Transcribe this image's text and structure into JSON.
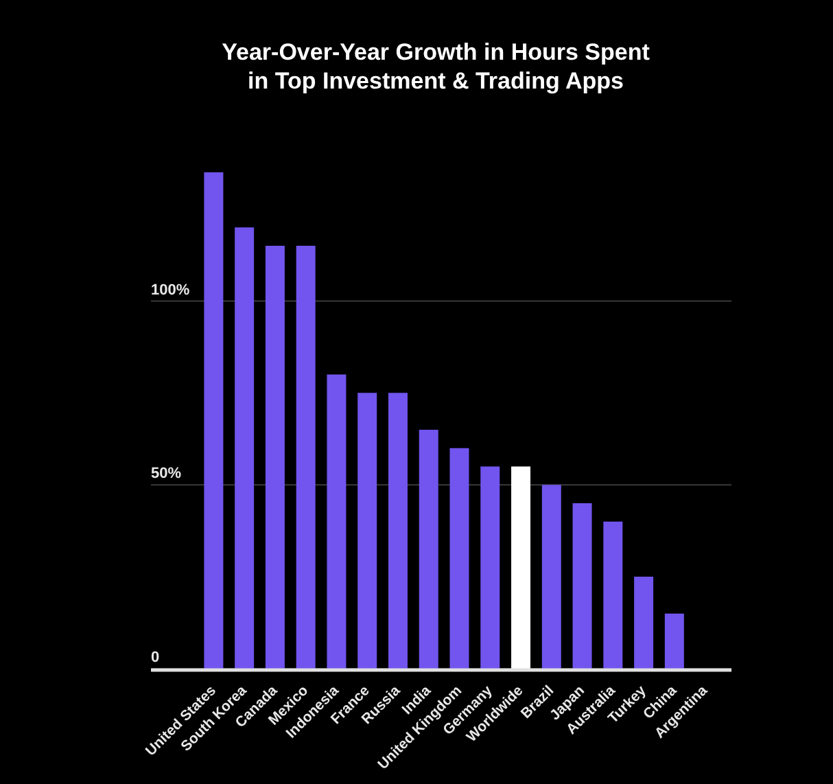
{
  "chart_data": {
    "type": "bar",
    "title": "Year-Over-Year Growth in Hours Spent\nin Top Investment & Trading Apps",
    "categories": [
      "United States",
      "South Korea",
      "Canada",
      "Mexico",
      "Indonesia",
      "France",
      "Russia",
      "India",
      "United Kingdom",
      "Germany",
      "Worldwide",
      "Brazil",
      "Japan",
      "Australia",
      "Turkey",
      "China",
      "Argentina"
    ],
    "values": [
      135,
      120,
      115,
      115,
      80,
      75,
      75,
      65,
      60,
      55,
      55,
      50,
      45,
      40,
      25,
      15,
      0
    ],
    "colors": [
      "#7155ee",
      "#7155ee",
      "#7155ee",
      "#7155ee",
      "#7155ee",
      "#7155ee",
      "#7155ee",
      "#7155ee",
      "#7155ee",
      "#7155ee",
      "#ffffff",
      "#7155ee",
      "#7155ee",
      "#7155ee",
      "#7155ee",
      "#7155ee",
      "#7155ee"
    ],
    "ylim": [
      0,
      135
    ],
    "yticks": [
      0,
      {
        "value": 50,
        "label": "50%"
      },
      {
        "value": 100,
        "label": "100%"
      }
    ],
    "grid": "y"
  }
}
